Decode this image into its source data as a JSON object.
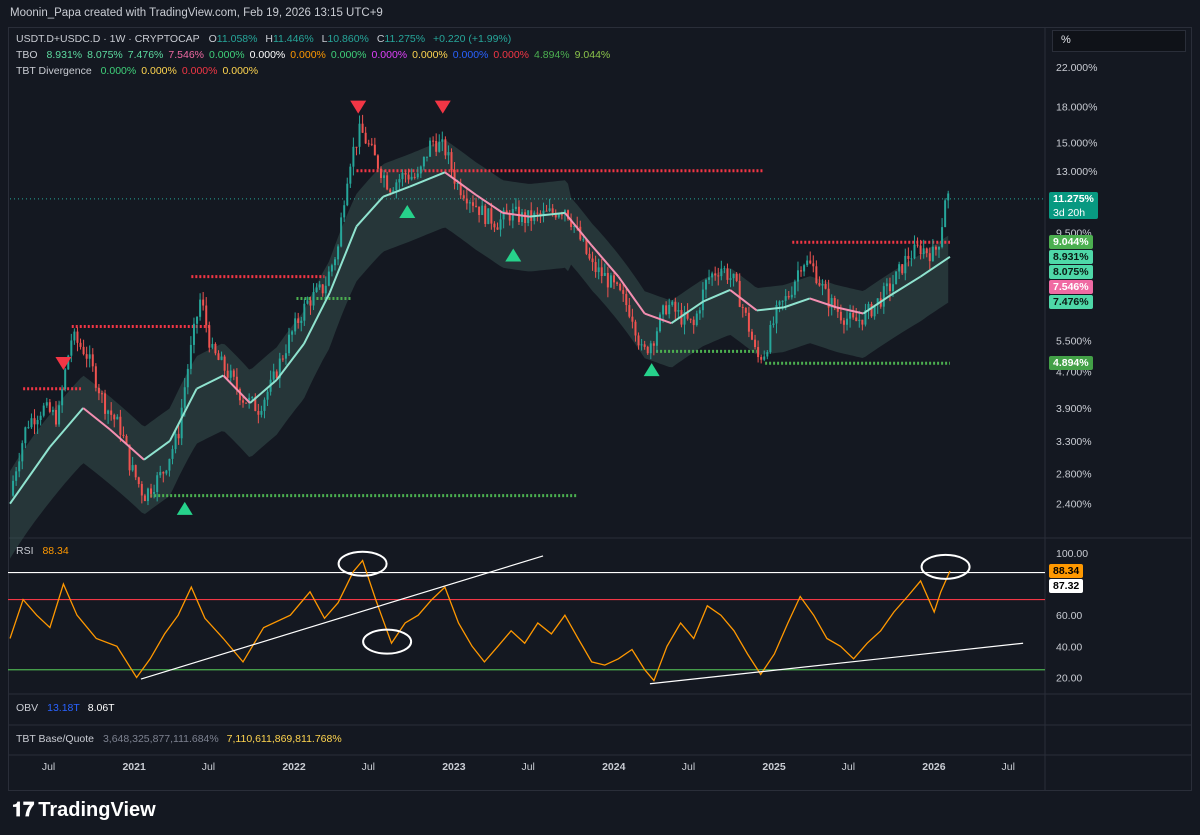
{
  "header": {
    "attribution": "Moonin_Papa created with TradingView.com, Feb 19, 2026 13:15 UTC+9"
  },
  "main_legend": {
    "symbol": "USDT.D+USDC.D · 1W · CRYPTOCAP",
    "o_label": "O",
    "o_value": "11.058%",
    "h_label": "H",
    "h_value": "11.446%",
    "l_label": "L",
    "l_value": "10.860%",
    "c_label": "C",
    "c_value": "11.275%",
    "change": "+0.220 (+1.99%)"
  },
  "tbo_legend": {
    "name": "TBO",
    "values": [
      {
        "text": "8.931%",
        "color": "#5ddba0"
      },
      {
        "text": "8.075%",
        "color": "#5ddba0"
      },
      {
        "text": "7.476%",
        "color": "#5ddba0"
      },
      {
        "text": "7.546%",
        "color": "#f06aa3"
      },
      {
        "text": "0.000%",
        "color": "#3fd07a"
      },
      {
        "text": "0.000%",
        "color": "#ffffff"
      },
      {
        "text": "0.000%",
        "color": "#ff9800"
      },
      {
        "text": "0.000%",
        "color": "#3fd07a"
      },
      {
        "text": "0.000%",
        "color": "#e040fb"
      },
      {
        "text": "0.000%",
        "color": "#ffd54f"
      },
      {
        "text": "0.000%",
        "color": "#2962ff"
      },
      {
        "text": "0.000%",
        "color": "#f23645"
      },
      {
        "text": "4.894%",
        "color": "#4caf50"
      },
      {
        "text": "9.044%",
        "color": "#8bc34a"
      }
    ]
  },
  "divergence_legend": {
    "name": "TBT Divergence",
    "values": [
      {
        "text": "0.000%",
        "color": "#3fd07a"
      },
      {
        "text": "0.000%",
        "color": "#ffd54f"
      },
      {
        "text": "0.000%",
        "color": "#f23645"
      },
      {
        "text": "0.000%",
        "color": "#ffd54f"
      }
    ]
  },
  "rsi_legend": {
    "name": "RSI",
    "value": "88.34"
  },
  "obv_legend": {
    "name": "OBV",
    "v1": "13.18T",
    "v2": "8.06T"
  },
  "basequote_legend": {
    "name": "TBT Base/Quote",
    "v1": "3,648,325,877,111.684%",
    "v2": "7,110,611,869,811.768%"
  },
  "scale_selector": {
    "label": "%"
  },
  "price_tags": [
    {
      "text": "11.275%",
      "sub": "3d 20h",
      "bg": "#089981",
      "fg": "#ffffff",
      "value": 11.275
    },
    {
      "text": "9.044%",
      "bg": "#4caf50",
      "fg": "#ffffff",
      "value": 9.044
    },
    {
      "text": "8.931%",
      "bg": "#4ed8a8",
      "fg": "#0b1a14",
      "value": 8.931
    },
    {
      "text": "8.075%",
      "bg": "#4ed8a8",
      "fg": "#0b1a14",
      "value": 8.075
    },
    {
      "text": "7.546%",
      "bg": "#f06aa3",
      "fg": "#ffffff",
      "value": 7.546
    },
    {
      "text": "7.476%",
      "bg": "#4ed8a8",
      "fg": "#0b1a14",
      "value": 7.476
    },
    {
      "text": "4.894%",
      "bg": "#43a047",
      "fg": "#ffffff",
      "value": 4.894
    }
  ],
  "rsi_tags": [
    {
      "text": "88.34",
      "bg": "#ff9800",
      "fg": "#000000",
      "value": 88.34
    },
    {
      "text": "87.32",
      "bg": "#ffffff",
      "fg": "#000000",
      "value": 87.32
    }
  ],
  "chart_data": [
    {
      "type": "candlestick",
      "title": "USDT.D+USDC.D · 1W · CRYPTOCAP",
      "y_scale": "log",
      "ylim": [
        2.1,
        24
      ],
      "y_ticks": [
        "22.000%",
        "18.000%",
        "15.000%",
        "13.000%",
        "9.500%",
        "5.500%",
        "4.700%",
        "3.900%",
        "3.300%",
        "2.800%",
        "2.400%"
      ],
      "y_tick_values": [
        22,
        18,
        15,
        13,
        9.5,
        5.5,
        4.7,
        3.9,
        3.3,
        2.8,
        2.4
      ],
      "x_ticks": [
        "Jul",
        "2021",
        "Jul",
        "2022",
        "Jul",
        "2023",
        "Jul",
        "2024",
        "Jul",
        "2025",
        "Jul",
        "2026",
        "Jul"
      ],
      "x_tick_values": [
        "2020-07-01",
        "2021-01-01",
        "2021-07-01",
        "2022-01-01",
        "2022-07-01",
        "2023-01-01",
        "2023-07-01",
        "2024-01-01",
        "2024-07-01",
        "2025-01-01",
        "2025-07-01",
        "2026-01-01",
        "2026-07-01"
      ],
      "x_range": [
        "2020-04-01",
        "2026-09-20"
      ],
      "price_path": [
        [
          "2020-04-01",
          2.5
        ],
        [
          "2020-05-10",
          3.6
        ],
        [
          "2020-06-15",
          3.9
        ],
        [
          "2020-07-20",
          3.7
        ],
        [
          "2020-08-20",
          5.6
        ],
        [
          "2020-09-20",
          5.2
        ],
        [
          "2020-11-01",
          4.0
        ],
        [
          "2020-12-10",
          3.5
        ],
        [
          "2021-01-01",
          2.9
        ],
        [
          "2021-02-01",
          2.5
        ],
        [
          "2021-03-15",
          2.8
        ],
        [
          "2021-04-20",
          3.4
        ],
        [
          "2021-05-20",
          5.3
        ],
        [
          "2021-06-10",
          6.8
        ],
        [
          "2021-07-05",
          5.2
        ],
        [
          "2021-08-15",
          4.6
        ],
        [
          "2021-09-15",
          4.1
        ],
        [
          "2021-10-20",
          3.9
        ],
        [
          "2021-11-20",
          4.4
        ],
        [
          "2022-01-01",
          5.6
        ],
        [
          "2022-02-10",
          6.7
        ],
        [
          "2022-03-20",
          7.2
        ],
        [
          "2022-04-20",
          8.8
        ],
        [
          "2022-05-15",
          13.5
        ],
        [
          "2022-06-10",
          16.0
        ],
        [
          "2022-07-10",
          14.0
        ],
        [
          "2022-08-15",
          12.0
        ],
        [
          "2022-09-20",
          12.8
        ],
        [
          "2022-10-20",
          12.5
        ],
        [
          "2022-11-20",
          15.2
        ],
        [
          "2022-12-20",
          14.5
        ],
        [
          "2023-01-15",
          12.2
        ],
        [
          "2023-02-20",
          11.2
        ],
        [
          "2023-03-20",
          10.4
        ],
        [
          "2023-04-20",
          10.0
        ],
        [
          "2023-05-20",
          10.5
        ],
        [
          "2023-06-20",
          10.2
        ],
        [
          "2023-07-20",
          10.3
        ],
        [
          "2023-08-20",
          10.5
        ],
        [
          "2023-09-20",
          10.8
        ],
        [
          "2023-10-20",
          9.4
        ],
        [
          "2023-11-20",
          8.0
        ],
        [
          "2023-12-20",
          7.6
        ],
        [
          "2024-01-20",
          7.0
        ],
        [
          "2024-02-20",
          6.3
        ],
        [
          "2024-03-15",
          5.1
        ],
        [
          "2024-04-10",
          5.6
        ],
        [
          "2024-05-10",
          6.6
        ],
        [
          "2024-06-10",
          6.2
        ],
        [
          "2024-07-10",
          5.9
        ],
        [
          "2024-08-10",
          7.5
        ],
        [
          "2024-09-10",
          8.0
        ],
        [
          "2024-10-10",
          7.4
        ],
        [
          "2024-11-10",
          6.0
        ],
        [
          "2024-12-01",
          5.0
        ],
        [
          "2024-12-20",
          5.2
        ],
        [
          "2025-01-15",
          6.3
        ],
        [
          "2025-02-15",
          7.0
        ],
        [
          "2025-03-15",
          8.3
        ],
        [
          "2025-04-10",
          7.9
        ],
        [
          "2025-05-10",
          6.8
        ],
        [
          "2025-06-10",
          6.3
        ],
        [
          "2025-07-10",
          6.0
        ],
        [
          "2025-08-10",
          6.3
        ],
        [
          "2025-09-10",
          6.8
        ],
        [
          "2025-10-10",
          7.4
        ],
        [
          "2025-11-10",
          8.4
        ],
        [
          "2025-12-10",
          8.8
        ],
        [
          "2026-01-10",
          8.5
        ],
        [
          "2026-01-25",
          9.4
        ],
        [
          "2026-02-05",
          11.6
        ],
        [
          "2026-02-15",
          11.275
        ]
      ],
      "ma_path": [
        [
          "2020-04-01",
          2.4
        ],
        [
          "2020-07-01",
          3.2
        ],
        [
          "2020-09-15",
          3.9
        ],
        [
          "2020-11-15",
          3.5
        ],
        [
          "2021-02-01",
          3.0
        ],
        [
          "2021-04-01",
          3.3
        ],
        [
          "2021-06-01",
          4.3
        ],
        [
          "2021-08-01",
          4.6
        ],
        [
          "2021-10-01",
          4.0
        ],
        [
          "2021-12-01",
          4.5
        ],
        [
          "2022-02-01",
          5.4
        ],
        [
          "2022-04-01",
          7.0
        ],
        [
          "2022-06-01",
          9.8
        ],
        [
          "2022-08-01",
          11.4
        ],
        [
          "2022-10-01",
          12.0
        ],
        [
          "2022-12-20",
          12.9
        ],
        [
          "2023-03-01",
          11.5
        ],
        [
          "2023-05-01",
          10.5
        ],
        [
          "2023-07-01",
          10.3
        ],
        [
          "2023-09-20",
          10.5
        ],
        [
          "2023-11-20",
          8.9
        ],
        [
          "2024-01-20",
          7.6
        ],
        [
          "2024-03-20",
          6.3
        ],
        [
          "2024-05-20",
          6.0
        ],
        [
          "2024-08-01",
          6.7
        ],
        [
          "2024-10-01",
          7.1
        ],
        [
          "2024-12-01",
          6.4
        ],
        [
          "2025-02-01",
          6.5
        ],
        [
          "2025-04-01",
          6.8
        ],
        [
          "2025-06-01",
          6.5
        ],
        [
          "2025-08-01",
          6.3
        ],
        [
          "2025-10-01",
          6.9
        ],
        [
          "2025-12-10",
          7.6
        ],
        [
          "2026-02-15",
          8.4
        ]
      ],
      "horizontal_levels": [
        {
          "y": 13.0,
          "from": "2022-06-01",
          "to": "2024-12-15",
          "color": "#f23645"
        },
        {
          "y": 9.044,
          "from": "2025-02-20",
          "to": "2026-02-15",
          "color": "#f23645"
        },
        {
          "y": 4.894,
          "from": "2024-12-20",
          "to": "2026-02-15",
          "color": "#4caf50"
        },
        {
          "y": 5.2,
          "from": "2024-04-15",
          "to": "2024-12-01",
          "color": "#4caf50"
        },
        {
          "y": 2.5,
          "from": "2021-02-15",
          "to": "2023-10-20",
          "color": "#4caf50"
        },
        {
          "y": 5.9,
          "from": "2020-08-20",
          "to": "2021-07-01",
          "color": "#f23645"
        },
        {
          "y": 4.3,
          "from": "2020-05-01",
          "to": "2020-09-10",
          "color": "#f23645"
        },
        {
          "y": 7.6,
          "from": "2021-05-20",
          "to": "2022-03-20",
          "color": "#f23645"
        },
        {
          "y": 6.8,
          "from": "2022-01-15",
          "to": "2022-05-20",
          "color": "#4caf50"
        }
      ],
      "markers": [
        {
          "date": "2020-08-01",
          "y": 4.9,
          "shape": "down",
          "color": "#f23645"
        },
        {
          "date": "2022-06-05",
          "y": 18.0,
          "shape": "down",
          "color": "#f23645"
        },
        {
          "date": "2022-12-15",
          "y": 18.0,
          "shape": "down",
          "color": "#f23645"
        },
        {
          "date": "2021-05-05",
          "y": 2.35,
          "shape": "up",
          "color": "#26d28b"
        },
        {
          "date": "2022-09-25",
          "y": 10.6,
          "shape": "up",
          "color": "#26d28b"
        },
        {
          "date": "2023-05-25",
          "y": 8.5,
          "shape": "up",
          "color": "#26d28b"
        },
        {
          "date": "2024-04-05",
          "y": 4.75,
          "shape": "up",
          "color": "#26d28b"
        }
      ],
      "price_line": 11.275
    },
    {
      "type": "line",
      "title": "RSI",
      "ylim": [
        12,
        105
      ],
      "y_ticks": [
        "100.00",
        "60.00",
        "40.00",
        "20.00"
      ],
      "y_tick_values": [
        100,
        60,
        40,
        20
      ],
      "levels": [
        {
          "y": 87.32,
          "color": "#ffffff"
        },
        {
          "y": 70,
          "color": "#f23645"
        },
        {
          "y": 25,
          "color": "#4caf50"
        }
      ],
      "rsi_path": [
        [
          "2020-04-01",
          45
        ],
        [
          "2020-05-01",
          70
        ],
        [
          "2020-06-01",
          60
        ],
        [
          "2020-07-01",
          52
        ],
        [
          "2020-08-01",
          80
        ],
        [
          "2020-09-01",
          60
        ],
        [
          "2020-10-15",
          45
        ],
        [
          "2020-12-01",
          40
        ],
        [
          "2021-01-15",
          20
        ],
        [
          "2021-02-15",
          32
        ],
        [
          "2021-03-20",
          48
        ],
        [
          "2021-04-20",
          60
        ],
        [
          "2021-05-20",
          78
        ],
        [
          "2021-06-20",
          58
        ],
        [
          "2021-08-01",
          45
        ],
        [
          "2021-09-15",
          30
        ],
        [
          "2021-11-01",
          52
        ],
        [
          "2022-01-01",
          60
        ],
        [
          "2022-02-15",
          75
        ],
        [
          "2022-03-20",
          58
        ],
        [
          "2022-04-20",
          68
        ],
        [
          "2022-05-25",
          88
        ],
        [
          "2022-06-15",
          95
        ],
        [
          "2022-07-15",
          70
        ],
        [
          "2022-08-20",
          42
        ],
        [
          "2022-09-20",
          55
        ],
        [
          "2022-10-20",
          60
        ],
        [
          "2022-11-20",
          70
        ],
        [
          "2022-12-20",
          78
        ],
        [
          "2023-01-20",
          55
        ],
        [
          "2023-02-20",
          40
        ],
        [
          "2023-03-20",
          30
        ],
        [
          "2023-04-20",
          40
        ],
        [
          "2023-05-20",
          50
        ],
        [
          "2023-06-20",
          42
        ],
        [
          "2023-07-20",
          55
        ],
        [
          "2023-08-20",
          48
        ],
        [
          "2023-09-20",
          60
        ],
        [
          "2023-10-20",
          45
        ],
        [
          "2023-11-20",
          30
        ],
        [
          "2023-12-20",
          28
        ],
        [
          "2024-01-20",
          32
        ],
        [
          "2024-02-20",
          38
        ],
        [
          "2024-03-20",
          25
        ],
        [
          "2024-04-10",
          18
        ],
        [
          "2024-05-10",
          40
        ],
        [
          "2024-06-10",
          55
        ],
        [
          "2024-07-10",
          45
        ],
        [
          "2024-08-10",
          66
        ],
        [
          "2024-09-10",
          60
        ],
        [
          "2024-10-10",
          50
        ],
        [
          "2024-11-10",
          35
        ],
        [
          "2024-12-10",
          22
        ],
        [
          "2025-01-10",
          35
        ],
        [
          "2025-02-10",
          55
        ],
        [
          "2025-03-10",
          72
        ],
        [
          "2025-04-10",
          60
        ],
        [
          "2025-05-10",
          45
        ],
        [
          "2025-06-10",
          40
        ],
        [
          "2025-07-10",
          32
        ],
        [
          "2025-08-10",
          42
        ],
        [
          "2025-09-10",
          50
        ],
        [
          "2025-10-10",
          62
        ],
        [
          "2025-11-10",
          72
        ],
        [
          "2025-12-10",
          82
        ],
        [
          "2026-01-10",
          62
        ],
        [
          "2026-01-25",
          75
        ],
        [
          "2026-02-15",
          88.34
        ]
      ],
      "trendlines": [
        {
          "from": [
            "2021-01-25",
            19
          ],
          "to": [
            "2023-08-01",
            98
          ]
        },
        {
          "from": [
            "2024-04-01",
            16
          ],
          "to": [
            "2026-08-01",
            42
          ]
        }
      ],
      "circles": [
        {
          "date": "2022-06-15",
          "y": 93
        },
        {
          "date": "2022-08-10",
          "y": 43
        },
        {
          "date": "2026-02-05",
          "y": 91
        }
      ]
    }
  ]
}
